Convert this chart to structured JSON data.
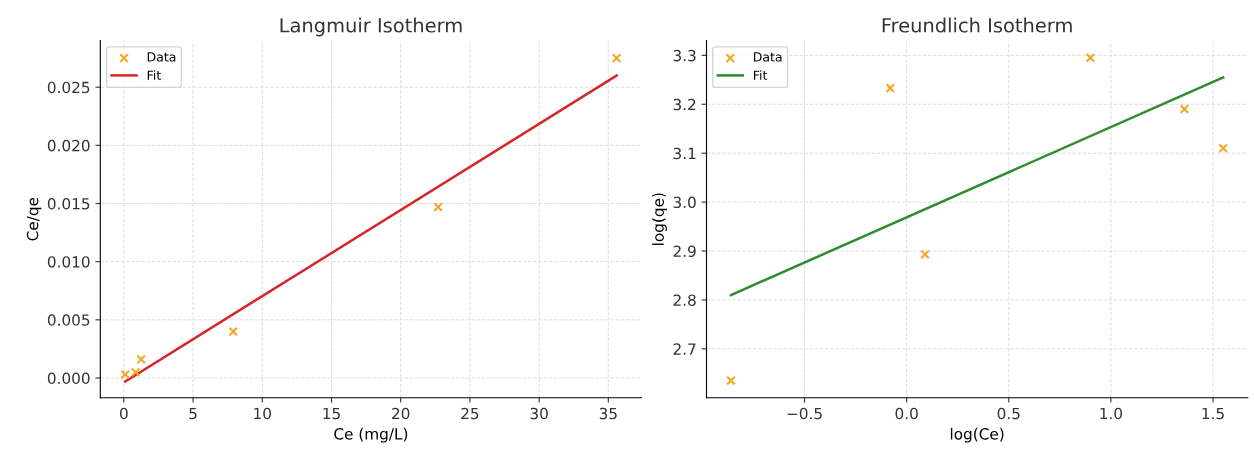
{
  "chart_data": [
    {
      "type": "scatter",
      "title": "Langmuir Isotherm",
      "xlabel": "Ce (mg/L)",
      "ylabel": "Ce/qe",
      "xlim": [
        -1.7,
        37.4
      ],
      "ylim": [
        -0.0017,
        0.029
      ],
      "xticks": [
        0,
        5,
        10,
        15,
        20,
        25,
        30,
        35
      ],
      "yticks": [
        {
          "value": 0,
          "label": "0.000"
        },
        {
          "value": 0.005,
          "label": "0.005"
        },
        {
          "value": 0.01,
          "label": "0.010"
        },
        {
          "value": 0.015,
          "label": "0.015"
        },
        {
          "value": 0.02,
          "label": "0.020"
        },
        {
          "value": 0.025,
          "label": "0.025"
        }
      ],
      "grid": true,
      "legend": "top left",
      "series": [
        {
          "name": "Data",
          "marker": "cross",
          "color": "#f5a623",
          "x": [
            0.1,
            0.85,
            1.25,
            7.9,
            22.7,
            35.6
          ],
          "values": [
            0.0003,
            0.0005,
            0.0016,
            0.004,
            0.0147,
            0.0275
          ]
        },
        {
          "name": "Fit",
          "type": "line",
          "color": "#d62728",
          "x": [
            0.1,
            35.6
          ],
          "values": [
            -0.0003,
            0.026
          ]
        }
      ]
    },
    {
      "type": "scatter",
      "title": "Freundlich Isotherm",
      "xlabel": "log(Ce)",
      "ylabel": "log(qe)",
      "xlim": [
        -0.98,
        1.67
      ],
      "ylim": [
        2.6,
        3.33
      ],
      "xticks": [
        {
          "value": -0.5,
          "label": "−0.5"
        },
        {
          "value": 0,
          "label": "0.0"
        },
        {
          "value": 0.5,
          "label": "0.5"
        },
        {
          "value": 1,
          "label": "1.0"
        },
        {
          "value": 1.5,
          "label": "1.5"
        }
      ],
      "yticks": [
        {
          "value": 2.7,
          "label": "2.7"
        },
        {
          "value": 2.8,
          "label": "2.8"
        },
        {
          "value": 2.9,
          "label": "2.9"
        },
        {
          "value": 3,
          "label": "3.0"
        },
        {
          "value": 3.1,
          "label": "3.1"
        },
        {
          "value": 3.2,
          "label": "3.2"
        },
        {
          "value": 3.3,
          "label": "3.3"
        }
      ],
      "grid": true,
      "legend": "top left",
      "series": [
        {
          "name": "Data",
          "marker": "cross",
          "color": "#f5a623",
          "x": [
            -0.86,
            -0.08,
            0.09,
            0.9,
            1.36,
            1.55
          ],
          "values": [
            2.635,
            3.233,
            2.893,
            3.295,
            3.19,
            3.11
          ]
        },
        {
          "name": "Fit",
          "type": "line",
          "color": "#2e8b2e",
          "x": [
            -0.86,
            1.55
          ],
          "values": [
            2.81,
            3.255
          ]
        }
      ]
    }
  ]
}
